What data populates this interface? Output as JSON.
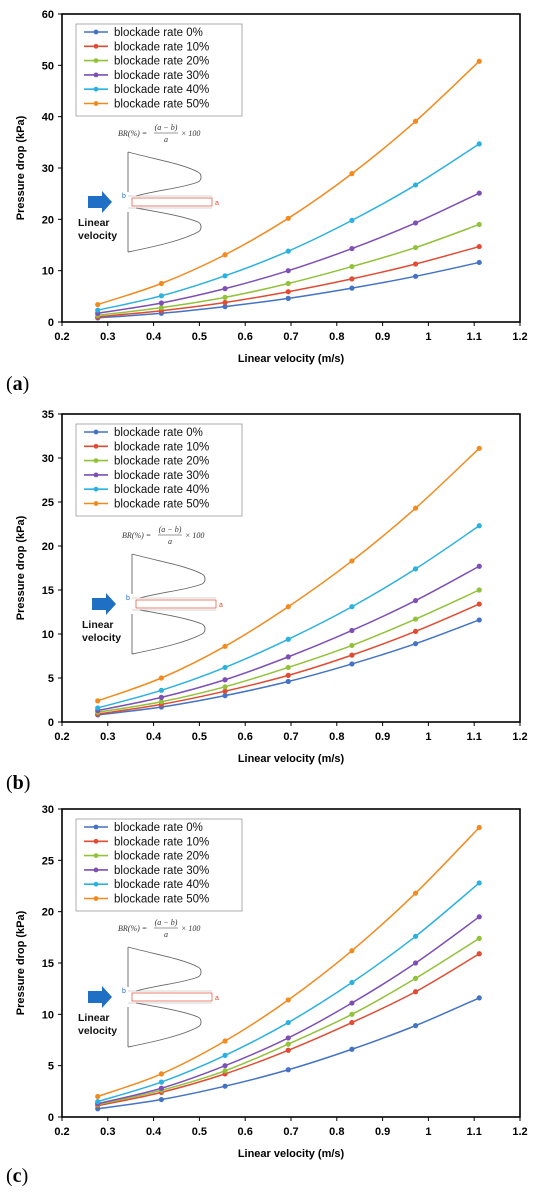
{
  "common": {
    "x": [
      0.278,
      0.417,
      0.556,
      0.694,
      0.833,
      0.972,
      1.111
    ],
    "xlim": [
      0.2,
      1.2
    ],
    "xticks": [
      "0.2",
      "0.3",
      "0.4",
      "0.5",
      "0.6",
      "0.7",
      "0.8",
      "0.9",
      "1",
      "1.1",
      "1.2"
    ],
    "xlabel": "Linear velocity (m/s)",
    "ylabel": "Pressure drop (kPa)",
    "series_names": [
      "blockade rate 0%",
      "blockade rate 10%",
      "blockade rate 20%",
      "blockade rate 30%",
      "blockade rate 40%",
      "blockade rate 50%"
    ],
    "colors": [
      "#4472C4",
      "#E04B33",
      "#92C13A",
      "#7E4FB5",
      "#2BB1E0",
      "#F28A1E"
    ],
    "inset": {
      "formula": "BR(%) = (a − b) / a × 100",
      "formula_lhs": "BR(%) =",
      "formula_num": "(a − b)",
      "formula_den": "a",
      "formula_rhs": "× 100",
      "label_line1": "Linear",
      "label_line2": "velocity",
      "b_label": "b",
      "a_label": "a",
      "arrow_color": "#1F6FC4"
    }
  },
  "chart_data": [
    {
      "type": "line",
      "panel": "(a)",
      "ylim": [
        0,
        60
      ],
      "yticks": [
        "0",
        "10",
        "20",
        "30",
        "40",
        "50",
        "60"
      ],
      "legend": "top-left",
      "series": [
        {
          "name": "blockade rate 0%",
          "values": [
            0.8,
            1.7,
            3.0,
            4.6,
            6.6,
            8.9,
            11.6
          ]
        },
        {
          "name": "blockade rate 10%",
          "values": [
            1.0,
            2.2,
            3.8,
            5.9,
            8.4,
            11.3,
            14.7
          ]
        },
        {
          "name": "blockade rate 20%",
          "values": [
            1.3,
            2.8,
            4.8,
            7.5,
            10.8,
            14.5,
            19.0
          ]
        },
        {
          "name": "blockade rate 30%",
          "values": [
            1.7,
            3.7,
            6.5,
            10.0,
            14.3,
            19.3,
            25.1
          ]
        },
        {
          "name": "blockade rate 40%",
          "values": [
            2.3,
            5.1,
            9.0,
            13.8,
            19.8,
            26.7,
            34.7
          ]
        },
        {
          "name": "blockade rate 50%",
          "values": [
            3.4,
            7.5,
            13.1,
            20.2,
            28.9,
            39.1,
            50.8
          ]
        }
      ]
    },
    {
      "type": "line",
      "panel": "(b)",
      "ylim": [
        0,
        35
      ],
      "yticks": [
        "0",
        "5",
        "10",
        "15",
        "20",
        "25",
        "30",
        "35"
      ],
      "legend": "top-left",
      "series": [
        {
          "name": "blockade rate 0%",
          "values": [
            0.8,
            1.7,
            3.0,
            4.6,
            6.6,
            8.9,
            11.6
          ]
        },
        {
          "name": "blockade rate 10%",
          "values": [
            0.9,
            2.0,
            3.5,
            5.3,
            7.6,
            10.3,
            13.4
          ]
        },
        {
          "name": "blockade rate 20%",
          "values": [
            1.1,
            2.3,
            4.0,
            6.2,
            8.7,
            11.7,
            15.0
          ]
        },
        {
          "name": "blockade rate 30%",
          "values": [
            1.3,
            2.8,
            4.8,
            7.4,
            10.4,
            13.8,
            17.7
          ]
        },
        {
          "name": "blockade rate 40%",
          "values": [
            1.6,
            3.6,
            6.2,
            9.4,
            13.1,
            17.4,
            22.3
          ]
        },
        {
          "name": "blockade rate 50%",
          "values": [
            2.4,
            5.0,
            8.6,
            13.1,
            18.3,
            24.3,
            31.1
          ]
        }
      ]
    },
    {
      "type": "line",
      "panel": "(c)",
      "ylim": [
        0,
        30
      ],
      "yticks": [
        "0",
        "5",
        "10",
        "15",
        "20",
        "25",
        "30"
      ],
      "legend": "top-left",
      "series": [
        {
          "name": "blockade rate 0%",
          "values": [
            0.8,
            1.7,
            3.0,
            4.6,
            6.6,
            8.9,
            11.6
          ]
        },
        {
          "name": "blockade rate 10%",
          "values": [
            1.1,
            2.4,
            4.2,
            6.5,
            9.2,
            12.2,
            15.9
          ]
        },
        {
          "name": "blockade rate 20%",
          "values": [
            1.2,
            2.6,
            4.5,
            7.1,
            10.0,
            13.5,
            17.4
          ]
        },
        {
          "name": "blockade rate 30%",
          "values": [
            1.3,
            2.8,
            5.0,
            7.7,
            11.1,
            15.0,
            19.5
          ]
        },
        {
          "name": "blockade rate 40%",
          "values": [
            1.5,
            3.4,
            6.0,
            9.2,
            13.1,
            17.6,
            22.8
          ]
        },
        {
          "name": "blockade rate 50%",
          "values": [
            2.0,
            4.2,
            7.4,
            11.4,
            16.2,
            21.8,
            28.2
          ]
        }
      ]
    }
  ]
}
